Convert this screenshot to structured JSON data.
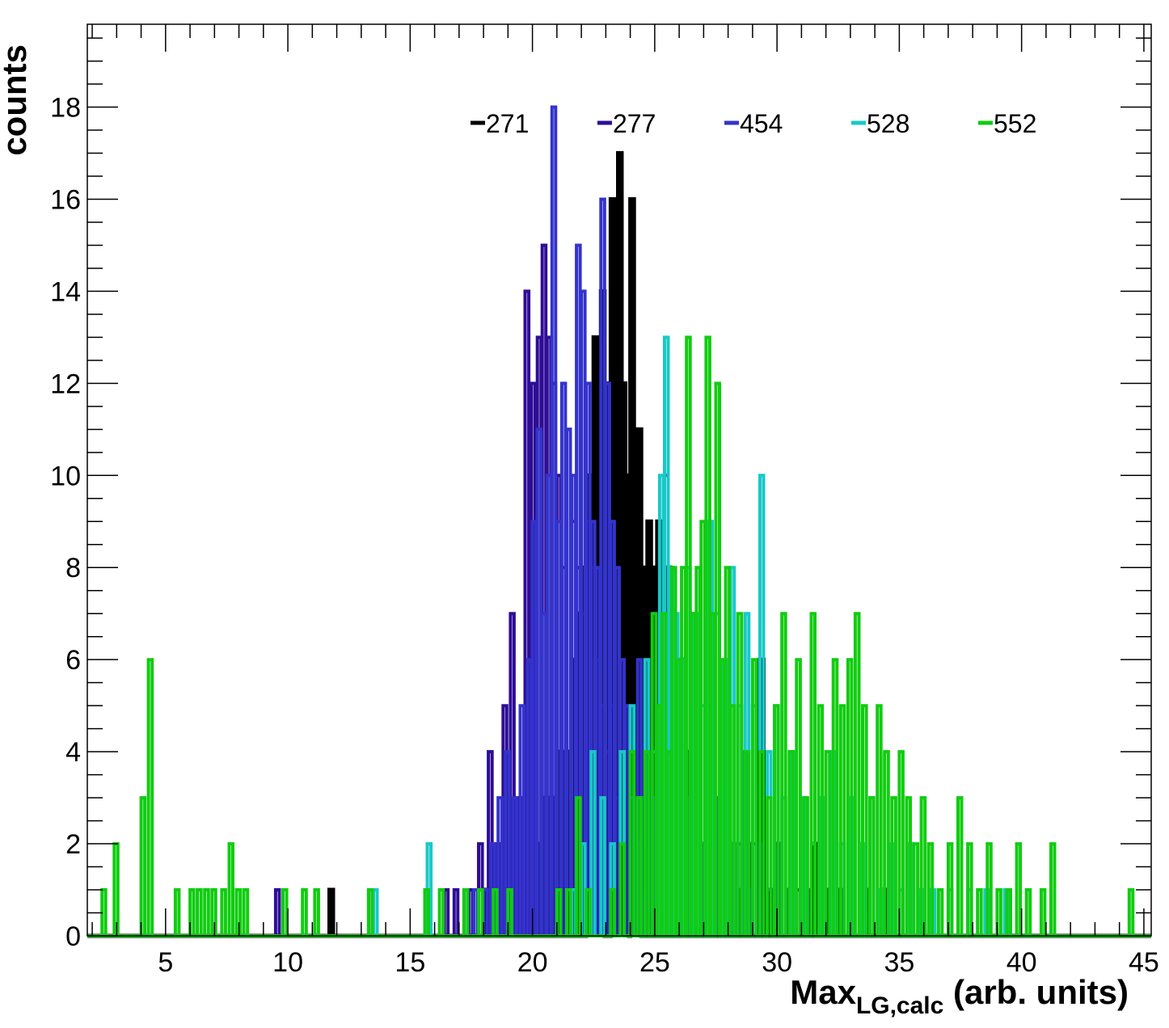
{
  "chart_data": {
    "type": "histogram",
    "title": "",
    "xlabel_main": "Max",
    "xlabel_sub": "LG,calc",
    "xlabel_tail": " (arb. units)",
    "ylabel": "counts",
    "xlim": [
      1.8,
      45.3
    ],
    "ylim": [
      0,
      19.8
    ],
    "xticks": [
      5,
      10,
      15,
      20,
      25,
      30,
      35,
      40,
      45
    ],
    "yticks": [
      0,
      2,
      4,
      6,
      8,
      10,
      12,
      14,
      16,
      18
    ],
    "legend_position": "top-center",
    "grid": false,
    "bin_start": 1.8,
    "bin_width": 0.15,
    "series": [
      {
        "name": "271",
        "color": "#000000",
        "bins": [
          [
            11.7,
            1
          ],
          [
            18.0,
            1
          ],
          [
            18.3,
            1
          ],
          [
            19.2,
            2
          ],
          [
            19.8,
            1
          ],
          [
            20.1,
            2
          ],
          [
            20.4,
            3
          ],
          [
            20.7,
            3
          ],
          [
            21.0,
            4
          ],
          [
            21.3,
            4
          ],
          [
            21.6,
            6
          ],
          [
            21.8,
            7
          ],
          [
            22.0,
            8
          ],
          [
            22.2,
            10
          ],
          [
            22.35,
            9
          ],
          [
            22.5,
            13
          ],
          [
            22.65,
            11
          ],
          [
            22.8,
            14
          ],
          [
            23.0,
            12
          ],
          [
            23.2,
            16
          ],
          [
            23.35,
            10
          ],
          [
            23.5,
            17
          ],
          [
            23.65,
            12
          ],
          [
            23.8,
            10
          ],
          [
            24.0,
            16
          ],
          [
            24.15,
            9
          ],
          [
            24.3,
            11
          ],
          [
            24.5,
            8
          ],
          [
            24.7,
            9
          ],
          [
            24.9,
            8
          ],
          [
            25.1,
            9
          ],
          [
            25.3,
            7
          ],
          [
            25.5,
            8
          ],
          [
            25.7,
            6
          ],
          [
            25.9,
            5
          ],
          [
            26.1,
            6
          ],
          [
            26.3,
            4
          ],
          [
            26.5,
            3
          ],
          [
            26.7,
            4
          ],
          [
            27.0,
            2
          ],
          [
            27.3,
            3
          ],
          [
            27.6,
            2
          ],
          [
            28.0,
            2
          ],
          [
            28.4,
            1
          ],
          [
            28.8,
            2
          ],
          [
            29.3,
            6
          ],
          [
            29.6,
            1
          ],
          [
            30.0,
            2
          ],
          [
            30.5,
            1
          ],
          [
            31.0,
            1
          ],
          [
            31.5,
            2
          ],
          [
            32.0,
            1
          ],
          [
            32.5,
            1
          ],
          [
            33.0,
            2
          ],
          [
            33.5,
            1
          ],
          [
            34.3,
            1
          ]
        ]
      },
      {
        "name": "277",
        "color": "#2e0d96",
        "bins": [
          [
            9.5,
            1
          ],
          [
            16.4,
            1
          ],
          [
            16.8,
            1
          ],
          [
            17.4,
            1
          ],
          [
            17.8,
            2
          ],
          [
            18.2,
            4
          ],
          [
            18.5,
            2
          ],
          [
            18.8,
            5
          ],
          [
            19.1,
            7
          ],
          [
            19.4,
            3
          ],
          [
            19.7,
            14
          ],
          [
            19.95,
            12
          ],
          [
            20.2,
            13
          ],
          [
            20.4,
            15
          ],
          [
            20.6,
            13
          ],
          [
            20.8,
            12
          ],
          [
            21.0,
            10
          ],
          [
            21.2,
            8
          ],
          [
            21.4,
            11
          ],
          [
            21.6,
            9
          ],
          [
            21.8,
            8
          ],
          [
            22.0,
            7
          ],
          [
            22.2,
            9
          ],
          [
            22.4,
            8
          ],
          [
            22.6,
            6
          ],
          [
            22.8,
            5
          ],
          [
            23.0,
            4
          ],
          [
            23.2,
            5
          ],
          [
            23.4,
            3
          ],
          [
            23.6,
            2
          ],
          [
            23.8,
            4
          ],
          [
            24.0,
            3
          ],
          [
            24.3,
            2
          ],
          [
            24.6,
            1
          ],
          [
            25.0,
            2
          ],
          [
            25.4,
            10
          ],
          [
            25.7,
            3
          ],
          [
            26.0,
            2
          ],
          [
            26.4,
            1
          ],
          [
            26.8,
            2
          ],
          [
            27.2,
            1
          ],
          [
            27.6,
            2
          ],
          [
            28.0,
            1
          ],
          [
            28.4,
            2
          ],
          [
            28.8,
            1
          ],
          [
            29.2,
            2
          ],
          [
            29.6,
            1
          ],
          [
            30.0,
            2
          ],
          [
            30.4,
            1
          ],
          [
            30.8,
            1
          ],
          [
            31.2,
            1
          ]
        ]
      },
      {
        "name": "454",
        "color": "#3333cc",
        "bins": [
          [
            13.3,
            1
          ],
          [
            17.2,
            1
          ],
          [
            17.6,
            1
          ],
          [
            18.0,
            1
          ],
          [
            18.3,
            2
          ],
          [
            18.6,
            3
          ],
          [
            18.9,
            4
          ],
          [
            19.2,
            3
          ],
          [
            19.5,
            5
          ],
          [
            19.8,
            6
          ],
          [
            20.0,
            9
          ],
          [
            20.2,
            11
          ],
          [
            20.4,
            7
          ],
          [
            20.6,
            10
          ],
          [
            20.8,
            18
          ],
          [
            21.0,
            9
          ],
          [
            21.2,
            12
          ],
          [
            21.4,
            11
          ],
          [
            21.6,
            10
          ],
          [
            21.8,
            15
          ],
          [
            22.0,
            14
          ],
          [
            22.2,
            12
          ],
          [
            22.4,
            9
          ],
          [
            22.6,
            8
          ],
          [
            22.8,
            16
          ],
          [
            23.0,
            12
          ],
          [
            23.2,
            9
          ],
          [
            23.4,
            8
          ],
          [
            23.6,
            6
          ],
          [
            23.8,
            5
          ],
          [
            24.0,
            3
          ],
          [
            24.3,
            6
          ],
          [
            24.6,
            4
          ],
          [
            25.0,
            3
          ],
          [
            25.4,
            6
          ],
          [
            25.8,
            2
          ],
          [
            26.2,
            3
          ],
          [
            26.6,
            1
          ],
          [
            27.0,
            2
          ],
          [
            27.4,
            3
          ],
          [
            27.8,
            5
          ],
          [
            28.2,
            2
          ],
          [
            28.6,
            4
          ],
          [
            29.0,
            2
          ],
          [
            29.6,
            1
          ]
        ]
      },
      {
        "name": "528",
        "color": "#19c8c8",
        "bins": [
          [
            13.5,
            1
          ],
          [
            15.7,
            2
          ],
          [
            21.6,
            1
          ],
          [
            22.0,
            2
          ],
          [
            22.4,
            4
          ],
          [
            22.8,
            3
          ],
          [
            23.2,
            2
          ],
          [
            23.6,
            4
          ],
          [
            24.0,
            5
          ],
          [
            24.3,
            3
          ],
          [
            24.6,
            6
          ],
          [
            24.9,
            4
          ],
          [
            25.2,
            10
          ],
          [
            25.4,
            13
          ],
          [
            25.6,
            8
          ],
          [
            25.8,
            7
          ],
          [
            26.0,
            6
          ],
          [
            26.3,
            8
          ],
          [
            26.6,
            7
          ],
          [
            26.9,
            5
          ],
          [
            27.2,
            9
          ],
          [
            27.5,
            7
          ],
          [
            27.8,
            6
          ],
          [
            28.1,
            8
          ],
          [
            28.4,
            5
          ],
          [
            28.7,
            7
          ],
          [
            29.0,
            5
          ],
          [
            29.3,
            10
          ],
          [
            29.6,
            4
          ],
          [
            29.9,
            5
          ],
          [
            30.2,
            3
          ],
          [
            30.6,
            4
          ],
          [
            31.0,
            3
          ],
          [
            31.4,
            2
          ],
          [
            31.8,
            3
          ],
          [
            32.2,
            4
          ],
          [
            32.6,
            2
          ],
          [
            33.0,
            3
          ],
          [
            33.4,
            2
          ],
          [
            33.8,
            3
          ],
          [
            34.2,
            1
          ],
          [
            34.6,
            2
          ],
          [
            35.0,
            1
          ],
          [
            35.4,
            2
          ],
          [
            35.8,
            1
          ],
          [
            36.3,
            1
          ],
          [
            37.0,
            1
          ],
          [
            37.8,
            1
          ],
          [
            38.5,
            1
          ],
          [
            39.3,
            1
          ]
        ]
      },
      {
        "name": "552",
        "color": "#11cc11",
        "bins": [
          [
            2.4,
            1
          ],
          [
            2.9,
            2
          ],
          [
            4.0,
            3
          ],
          [
            4.3,
            6
          ],
          [
            5.4,
            1
          ],
          [
            6.0,
            1
          ],
          [
            6.3,
            1
          ],
          [
            6.6,
            1
          ],
          [
            6.9,
            1
          ],
          [
            7.3,
            1
          ],
          [
            7.6,
            2
          ],
          [
            7.9,
            1
          ],
          [
            8.2,
            1
          ],
          [
            9.8,
            1
          ],
          [
            10.6,
            1
          ],
          [
            11.1,
            1
          ],
          [
            13.3,
            1
          ],
          [
            15.6,
            1
          ],
          [
            16.2,
            1
          ],
          [
            17.2,
            1
          ],
          [
            17.8,
            1
          ],
          [
            18.4,
            1
          ],
          [
            19.0,
            1
          ],
          [
            21.0,
            1
          ],
          [
            21.4,
            1
          ],
          [
            21.8,
            3
          ],
          [
            22.2,
            1
          ],
          [
            23.2,
            1
          ],
          [
            23.6,
            2
          ],
          [
            24.0,
            4
          ],
          [
            24.3,
            3
          ],
          [
            24.6,
            4
          ],
          [
            24.9,
            7
          ],
          [
            25.1,
            5
          ],
          [
            25.3,
            7
          ],
          [
            25.5,
            4
          ],
          [
            25.7,
            8
          ],
          [
            25.9,
            6
          ],
          [
            26.1,
            8
          ],
          [
            26.3,
            13
          ],
          [
            26.5,
            7
          ],
          [
            26.7,
            8
          ],
          [
            26.9,
            9
          ],
          [
            27.1,
            13
          ],
          [
            27.3,
            7
          ],
          [
            27.5,
            12
          ],
          [
            27.7,
            6
          ],
          [
            27.9,
            8
          ],
          [
            28.1,
            5
          ],
          [
            28.4,
            7
          ],
          [
            28.7,
            4
          ],
          [
            29.0,
            6
          ],
          [
            29.3,
            4
          ],
          [
            29.6,
            3
          ],
          [
            29.9,
            5
          ],
          [
            30.2,
            7
          ],
          [
            30.5,
            4
          ],
          [
            30.8,
            6
          ],
          [
            31.1,
            3
          ],
          [
            31.4,
            7
          ],
          [
            31.7,
            5
          ],
          [
            32.0,
            4
          ],
          [
            32.3,
            6
          ],
          [
            32.6,
            5
          ],
          [
            32.9,
            6
          ],
          [
            33.2,
            7
          ],
          [
            33.5,
            5
          ],
          [
            33.8,
            3
          ],
          [
            34.1,
            5
          ],
          [
            34.4,
            4
          ],
          [
            34.7,
            3
          ],
          [
            35.0,
            4
          ],
          [
            35.3,
            3
          ],
          [
            35.6,
            2
          ],
          [
            35.9,
            3
          ],
          [
            36.2,
            2
          ],
          [
            36.6,
            1
          ],
          [
            37.0,
            2
          ],
          [
            37.4,
            3
          ],
          [
            37.8,
            2
          ],
          [
            38.2,
            1
          ],
          [
            38.6,
            2
          ],
          [
            39.0,
            1
          ],
          [
            39.4,
            1
          ],
          [
            39.8,
            2
          ],
          [
            40.2,
            1
          ],
          [
            40.8,
            1
          ],
          [
            41.2,
            2
          ],
          [
            44.4,
            1
          ]
        ]
      }
    ]
  }
}
